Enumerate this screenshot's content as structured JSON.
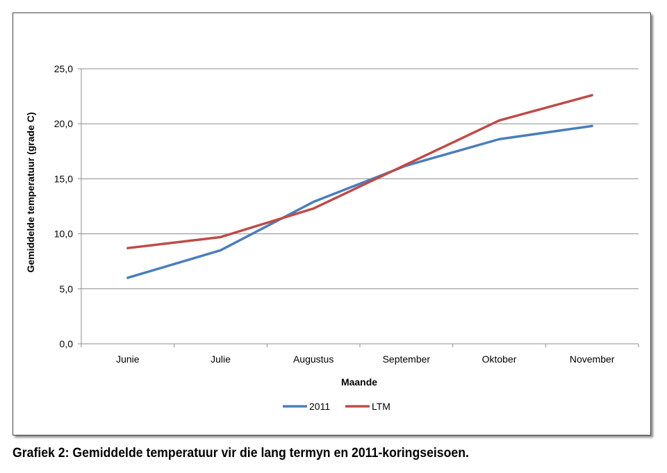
{
  "caption": "Grafiek 2: Gemiddelde temperatuur vir die lang termyn en 2011-koringseisoen.",
  "chart_data": {
    "type": "line",
    "title": "",
    "xlabel": "Maande",
    "ylabel": "Gemiddelde temperatuur (grade C)",
    "categories": [
      "Junie",
      "Julie",
      "Augustus",
      "September",
      "Oktober",
      "November"
    ],
    "ylim": [
      0,
      25
    ],
    "yticks": [
      0,
      5,
      10,
      15,
      20,
      25
    ],
    "ytick_labels": [
      "0,0",
      "5,0",
      "10,0",
      "15,0",
      "20,0",
      "25,0"
    ],
    "grid": true,
    "legend_position": "bottom",
    "series": [
      {
        "name": "2011",
        "color": "#4a7ebb",
        "values": [
          6.0,
          8.5,
          12.9,
          16.2,
          18.6,
          19.8
        ]
      },
      {
        "name": "LTM",
        "color": "#be4b48",
        "values": [
          8.7,
          9.7,
          12.3,
          16.3,
          20.3,
          22.6
        ]
      }
    ]
  }
}
